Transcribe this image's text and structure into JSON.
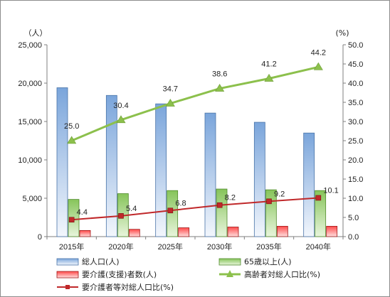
{
  "chart_data": {
    "type": "bar",
    "categories": [
      "2015年",
      "2020年",
      "2025年",
      "2030年",
      "2035年",
      "2040年"
    ],
    "y_left": {
      "unit": "（人）",
      "ylim": [
        0,
        25000
      ],
      "ticks": [
        "0",
        "5,000",
        "10,000",
        "15,000",
        "20,000",
        "25,000"
      ]
    },
    "y_right": {
      "unit": "(%)",
      "ylim": [
        0,
        50
      ],
      "ticks": [
        "0.0",
        "5.0",
        "10.0",
        "15.0",
        "20.0",
        "25.0",
        "30.0",
        "35.0",
        "40.0",
        "45.0",
        "50.0"
      ]
    },
    "series": [
      {
        "name": "総人口(人)",
        "kind": "bar",
        "axis": "left",
        "color": "#8eb4e3",
        "values": [
          19400,
          18400,
          17300,
          16100,
          14900,
          13500
        ]
      },
      {
        "name": "65歳以上(人)",
        "kind": "bar",
        "axis": "left",
        "color": "#9bd46e",
        "values": [
          4850,
          5600,
          6000,
          6200,
          6100,
          6000
        ]
      },
      {
        "name": "要介護(支援)者数(人)",
        "kind": "bar",
        "axis": "left",
        "color": "#ff5b5b",
        "values": [
          800,
          950,
          1150,
          1250,
          1350,
          1350
        ]
      },
      {
        "name": "高齢者対総人口比(%)",
        "kind": "line",
        "axis": "right",
        "color": "#8cc04c",
        "values": [
          25.0,
          30.4,
          34.7,
          38.6,
          41.2,
          44.2
        ],
        "labels": [
          "25.0",
          "30.4",
          "34.7",
          "38.6",
          "41.2",
          "44.2"
        ]
      },
      {
        "name": "要介護者等対総人口比(%)",
        "kind": "line",
        "axis": "right",
        "color": "#c0282a",
        "values": [
          4.4,
          5.4,
          6.8,
          8.2,
          9.2,
          10.1
        ],
        "labels": [
          "4.4",
          "5.4",
          "6.8",
          "8.2",
          "9.2",
          "10.1"
        ]
      }
    ],
    "grid": false,
    "legend_position": "bottom"
  }
}
